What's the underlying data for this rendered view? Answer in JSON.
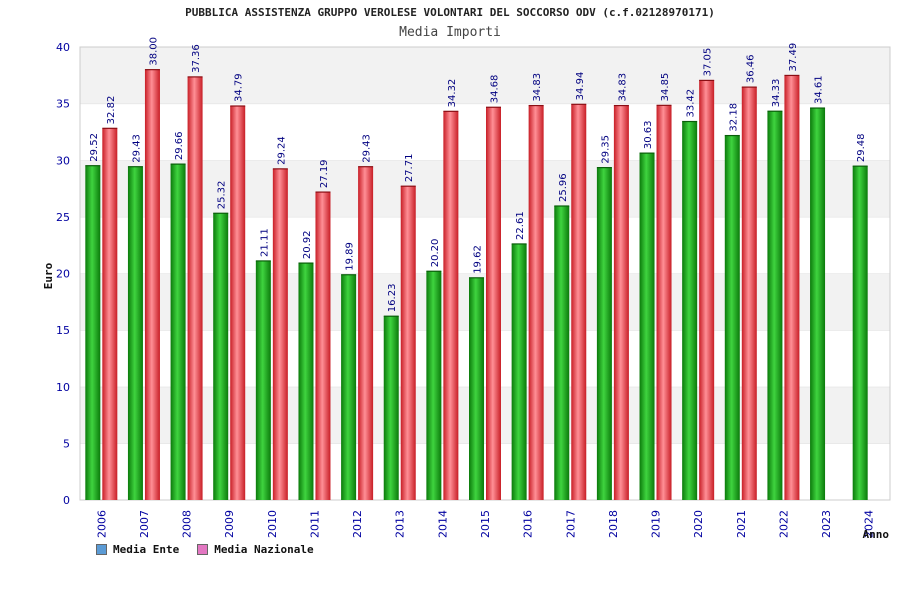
{
  "header": {
    "title": "PUBBLICA ASSISTENZA GRUPPO VEROLESE VOLONTARI DEL SOCCORSO ODV (c.f.02128970171)",
    "subtitle": "Media Importi"
  },
  "legend": {
    "ente_label": "Media Ente",
    "nazionale_label": "Media Nazionale",
    "ente_swatch_color": "#5b9bd5",
    "nazionale_swatch_color": "#e377c2"
  },
  "colors": {
    "ente_bar": "#1aa31a",
    "nazionale_bar": "#e8343c",
    "axis_text": "#0000a0",
    "label_text": "#000080",
    "band": "#f2f2f2"
  },
  "chart_data": {
    "type": "bar",
    "title": "PUBBLICA ASSISTENZA GRUPPO VEROLESE VOLONTARI DEL SOCCORSO ODV (c.f.02128970171)",
    "subtitle": "Media Importi",
    "xlabel": "Anno",
    "ylabel": "Euro",
    "ylim": [
      0,
      40
    ],
    "yticks": [
      0,
      5,
      10,
      15,
      20,
      25,
      30,
      35,
      40
    ],
    "categories": [
      "2006",
      "2007",
      "2008",
      "2009",
      "2010",
      "2011",
      "2012",
      "2013",
      "2014",
      "2015",
      "2016",
      "2017",
      "2018",
      "2019",
      "2020",
      "2021",
      "2022",
      "2023",
      "2024"
    ],
    "series": [
      {
        "name": "Media Ente",
        "values": [
          29.52,
          29.43,
          29.66,
          25.32,
          21.11,
          20.92,
          19.89,
          16.23,
          20.2,
          19.62,
          22.61,
          25.96,
          29.35,
          30.63,
          33.42,
          32.18,
          34.33,
          34.61,
          29.48
        ],
        "labels": [
          "29.52",
          "29.43",
          "29.66",
          "25.32",
          "21.11",
          "20.92",
          "19.89",
          "16.23",
          "20.20",
          "19.62",
          "22.61",
          "25.96",
          "29.35",
          "30.63",
          "33.42",
          "32.18",
          "34.33",
          "34.61",
          "29.48"
        ]
      },
      {
        "name": "Media Nazionale",
        "values": [
          32.82,
          38.0,
          37.36,
          34.79,
          29.24,
          27.19,
          29.43,
          27.71,
          34.32,
          34.68,
          34.83,
          34.94,
          34.83,
          34.85,
          37.05,
          36.46,
          37.49,
          null,
          null
        ],
        "labels": [
          "32.82",
          "38.00",
          "37.36",
          "34.79",
          "29.24",
          "27.19",
          "29.43",
          "27.71",
          "34.32",
          "34.68",
          "34.83",
          "34.94",
          "34.83",
          "34.85",
          "37.05",
          "36.46",
          "37.49",
          "",
          ""
        ]
      }
    ],
    "grid": "horizontal alternating bands",
    "legend_position": "bottom-left"
  }
}
